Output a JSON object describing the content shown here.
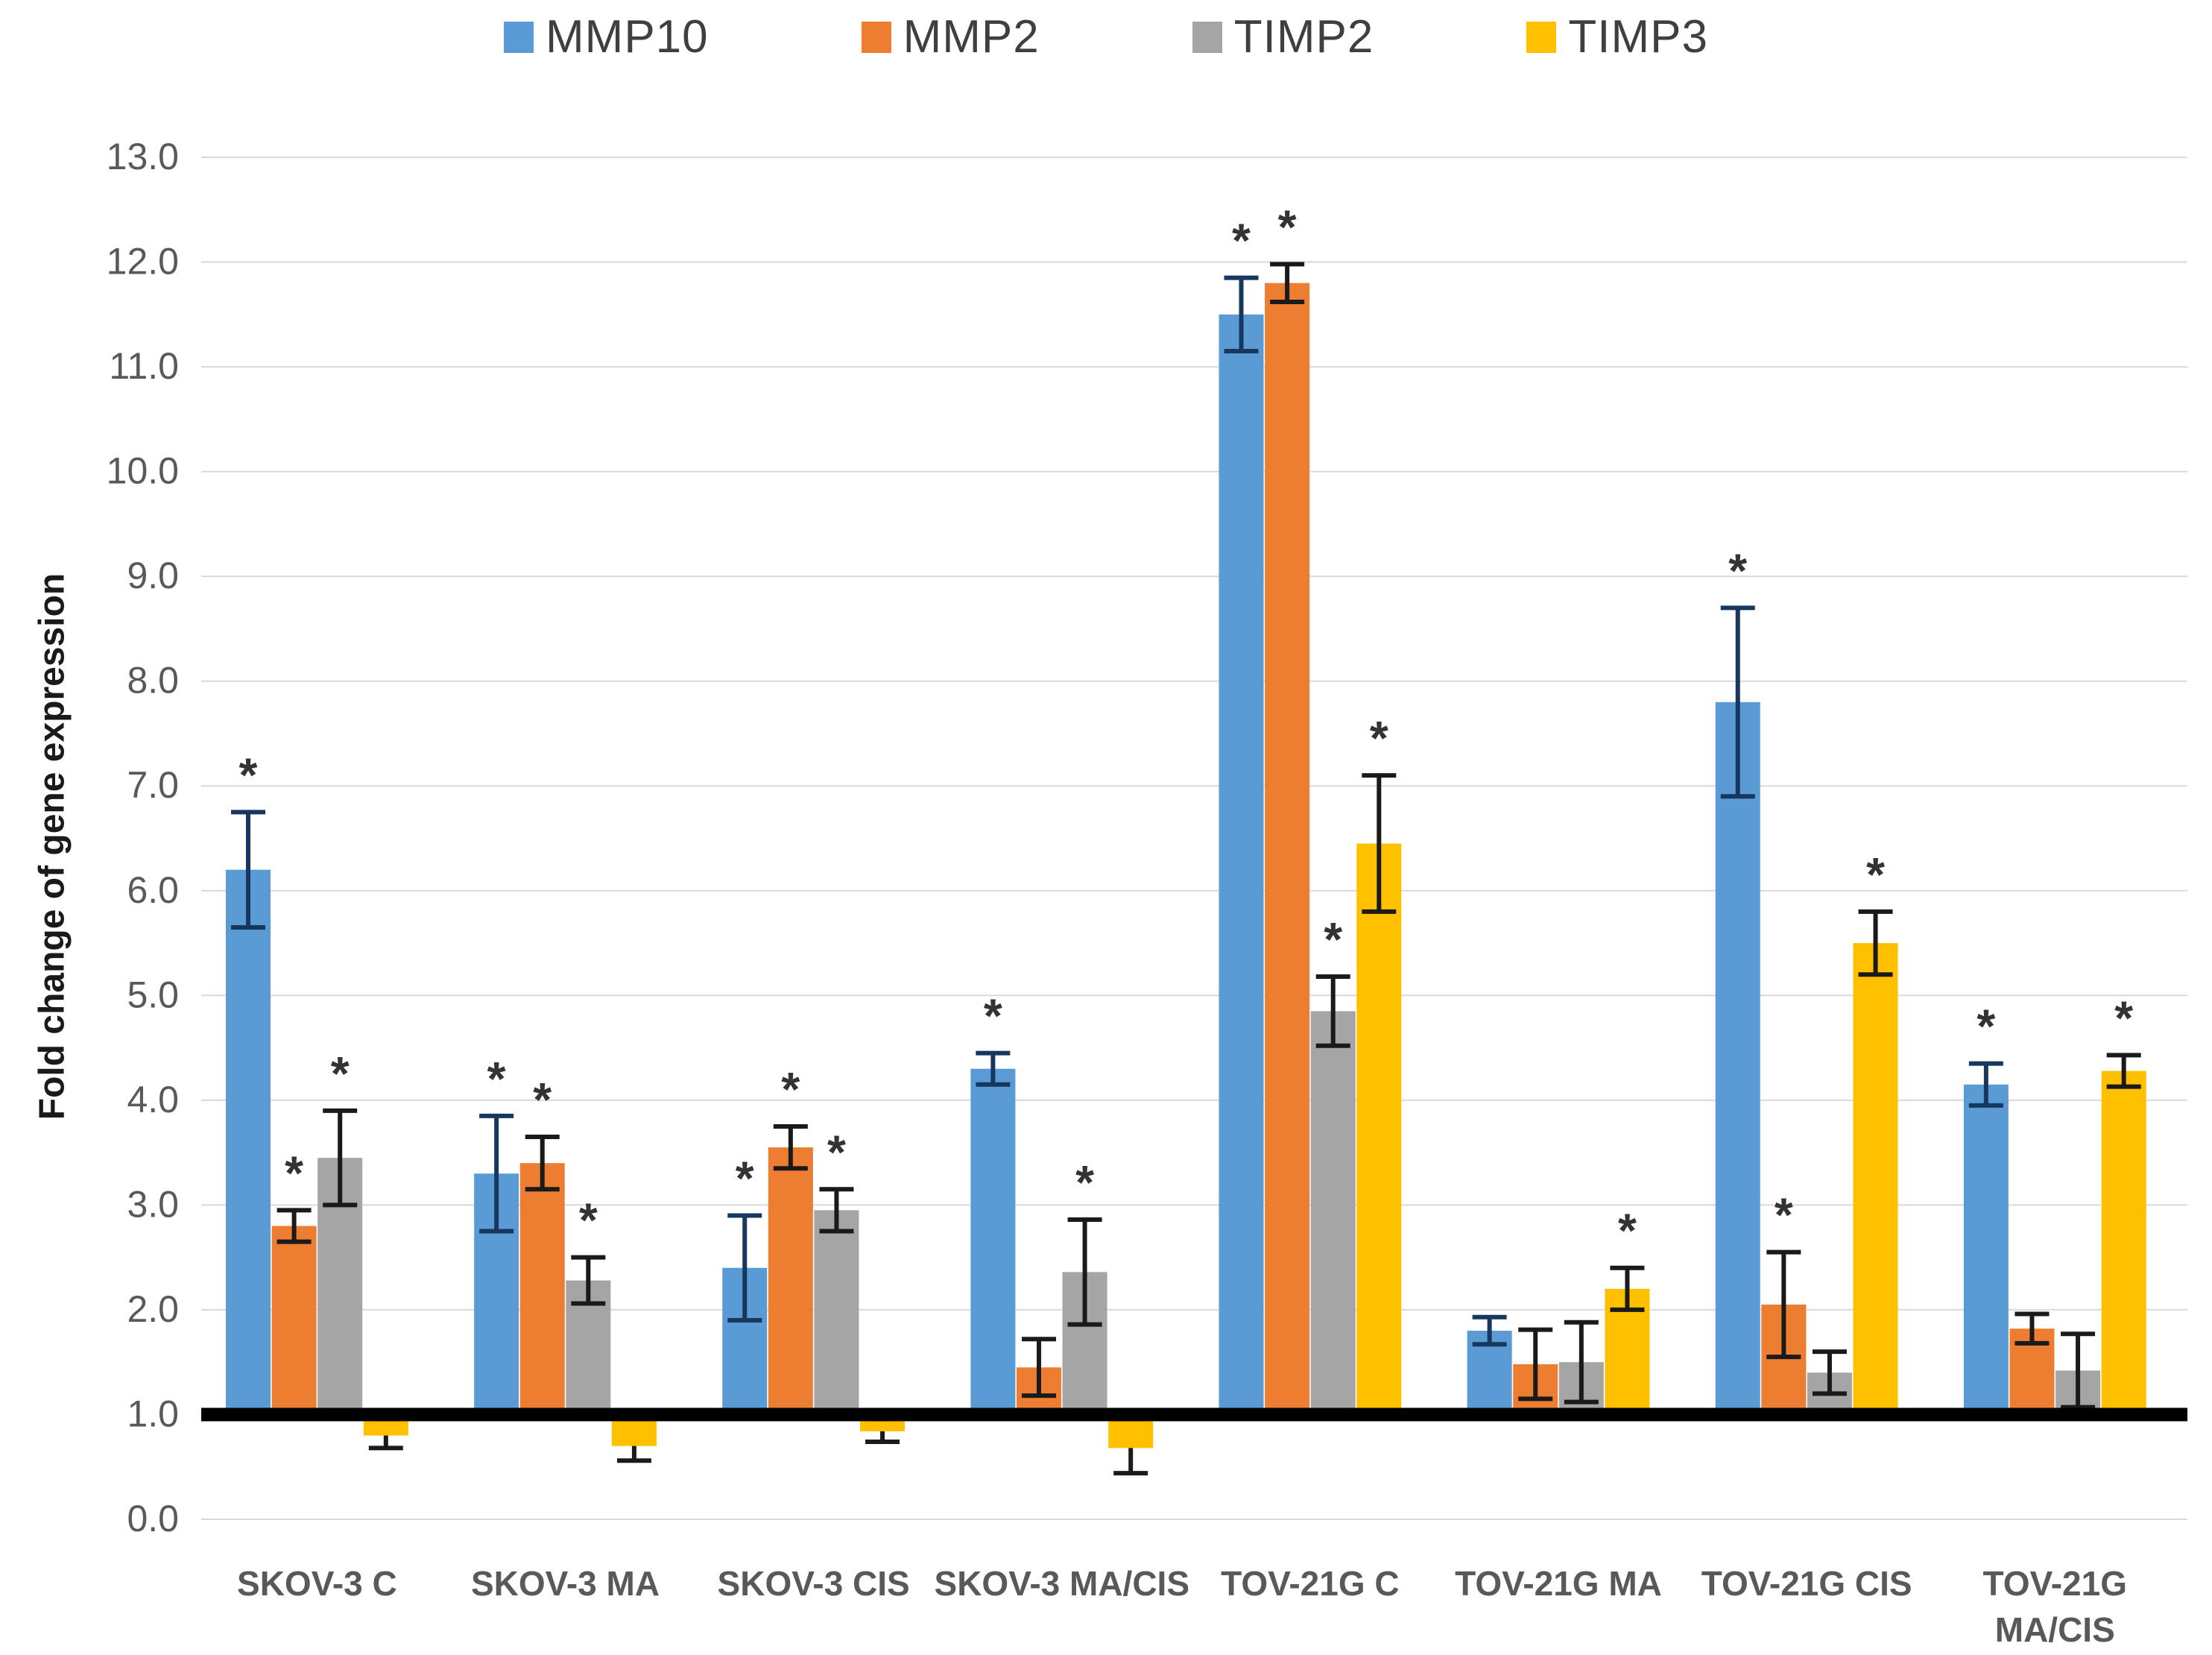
{
  "chart_data": {
    "type": "bar",
    "title": "",
    "xlabel": "",
    "ylabel": "Fold change of gene expression",
    "ylim": [
      0,
      13
    ],
    "ytick_step": 1.0,
    "grid": true,
    "legend_position": "top-center",
    "baseline": 1.0,
    "annotation_symbol": "*",
    "annotation_meaning": "significant bars are marked with an asterisk above the error bar",
    "ytick_labels": [
      "0.0",
      "1.0",
      "2.0",
      "3.0",
      "4.0",
      "5.0",
      "6.0",
      "7.0",
      "8.0",
      "9.0",
      "10.0",
      "11.0",
      "12.0",
      "13.0"
    ],
    "categories": [
      [
        "SKOV-3 C"
      ],
      [
        "SKOV-3 MA"
      ],
      [
        "SKOV-3 CIS"
      ],
      [
        "SKOV-3 MA/CIS"
      ],
      [
        "TOV-21G C"
      ],
      [
        "TOV-21G MA"
      ],
      [
        "TOV-21G CIS"
      ],
      [
        "TOV-21G",
        "MA/CIS"
      ]
    ],
    "series": [
      {
        "name": "MMP10",
        "color": "#5B9BD5",
        "error_color": "#17375E",
        "values": [
          6.2,
          3.3,
          2.4,
          4.3,
          11.5,
          1.8,
          7.8,
          4.15
        ],
        "errors": [
          0.55,
          0.55,
          0.5,
          0.15,
          0.35,
          0.13,
          0.9,
          0.2
        ],
        "significant": [
          true,
          true,
          true,
          true,
          true,
          false,
          true,
          true
        ]
      },
      {
        "name": "MMP2",
        "color": "#ED7D31",
        "error_color": "#1a1a1a",
        "values": [
          2.8,
          3.4,
          3.55,
          1.45,
          11.8,
          1.48,
          2.05,
          1.82
        ],
        "errors": [
          0.15,
          0.25,
          0.2,
          0.27,
          0.18,
          0.33,
          0.5,
          0.14
        ],
        "significant": [
          true,
          true,
          true,
          false,
          true,
          false,
          true,
          false
        ]
      },
      {
        "name": "TIMP2",
        "color": "#A5A5A5",
        "error_color": "#1a1a1a",
        "values": [
          3.45,
          2.28,
          2.95,
          2.36,
          4.85,
          1.5,
          1.4,
          1.42
        ],
        "errors": [
          0.45,
          0.22,
          0.2,
          0.5,
          0.33,
          0.38,
          0.2,
          0.35
        ],
        "significant": [
          true,
          true,
          true,
          true,
          true,
          false,
          false,
          false
        ]
      },
      {
        "name": "TIMP3",
        "color": "#FFC000",
        "error_color": "#1a1a1a",
        "values": [
          0.8,
          0.7,
          0.84,
          0.68,
          6.45,
          2.2,
          5.5,
          4.28
        ],
        "errors": [
          0.12,
          0.14,
          0.1,
          0.24,
          0.65,
          0.2,
          0.3,
          0.15
        ],
        "significant": [
          false,
          false,
          false,
          false,
          true,
          true,
          true,
          true
        ]
      }
    ],
    "colors": {
      "gridline": "#D9D9D9",
      "axis_baseline": "#000000",
      "tick_label": "#595959",
      "category_label": "#595959",
      "star": "#333333"
    }
  }
}
